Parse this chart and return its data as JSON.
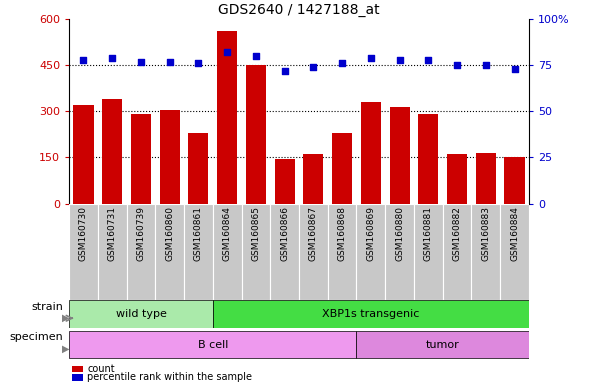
{
  "title": "GDS2640 / 1427188_at",
  "samples": [
    "GSM160730",
    "GSM160731",
    "GSM160739",
    "GSM160860",
    "GSM160861",
    "GSM160864",
    "GSM160865",
    "GSM160866",
    "GSM160867",
    "GSM160868",
    "GSM160869",
    "GSM160880",
    "GSM160881",
    "GSM160882",
    "GSM160883",
    "GSM160884"
  ],
  "counts": [
    320,
    340,
    290,
    305,
    230,
    560,
    450,
    145,
    160,
    230,
    330,
    315,
    290,
    160,
    165,
    150
  ],
  "percentiles": [
    78,
    79,
    77,
    77,
    76,
    82,
    80,
    72,
    74,
    76,
    79,
    78,
    78,
    75,
    75,
    73
  ],
  "ylim_left": [
    0,
    600
  ],
  "ylim_right": [
    0,
    100
  ],
  "yticks_left": [
    0,
    150,
    300,
    450,
    600
  ],
  "yticks_right": [
    0,
    25,
    50,
    75,
    100
  ],
  "ytick_labels_left": [
    "0",
    "150",
    "300",
    "450",
    "600"
  ],
  "ytick_labels_right": [
    "0",
    "25",
    "50",
    "75",
    "100%"
  ],
  "hlines": [
    150,
    300,
    450
  ],
  "bar_color": "#cc0000",
  "dot_color": "#0000cc",
  "strain_groups": [
    {
      "label": "wild type",
      "start": 0,
      "end": 5,
      "color": "#aaeaaa"
    },
    {
      "label": "XBP1s transgenic",
      "start": 5,
      "end": 16,
      "color": "#44dd44"
    }
  ],
  "specimen_groups": [
    {
      "label": "B cell",
      "start": 0,
      "end": 10,
      "color": "#ee99ee"
    },
    {
      "label": "tumor",
      "start": 10,
      "end": 16,
      "color": "#dd88dd"
    }
  ],
  "strain_label": "strain",
  "specimen_label": "specimen",
  "legend_count_label": "count",
  "legend_pct_label": "percentile rank within the sample",
  "tick_color_left": "#cc0000",
  "tick_color_right": "#0000cc",
  "xticklabel_bg": "#c8c8c8"
}
